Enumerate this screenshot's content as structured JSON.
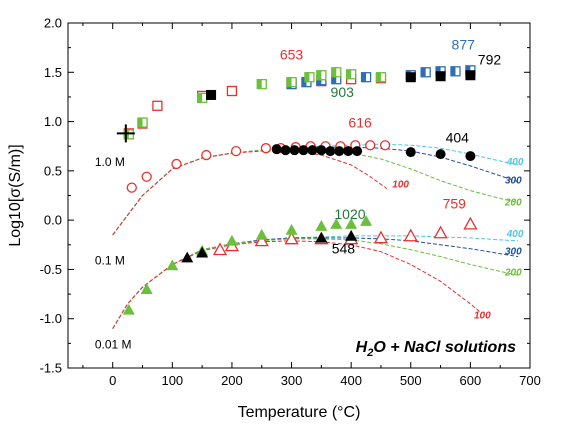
{
  "chart_data": {
    "type": "scatter",
    "title": "",
    "xlabel": "Temperature (°C)",
    "ylabel": "Log10[σ(S/m)]",
    "xlim": [
      -75,
      700
    ],
    "ylim": [
      -1.5,
      2.0
    ],
    "xticks": [
      "0",
      "100",
      "200",
      "300",
      "400",
      "500",
      "600",
      "700"
    ],
    "xtick_values": [
      0,
      100,
      200,
      300,
      400,
      500,
      600,
      700
    ],
    "yticks": [
      "-1.5",
      "-1.0",
      "-0.5",
      "0.0",
      "0.5",
      "1.0",
      "1.5",
      "2.0"
    ],
    "ytick_values": [
      -1.5,
      -1.0,
      -0.5,
      0.0,
      0.5,
      1.0,
      1.5,
      2.0
    ],
    "legend": "none",
    "grid": false,
    "inset_title_parts": [
      "H",
      "2",
      "O + NaCl solutions"
    ],
    "concentration_labels": [
      {
        "text": "1.0 M",
        "x": -30,
        "y": 0.55
      },
      {
        "text": "0.1 M",
        "x": -30,
        "y": -0.45
      },
      {
        "text": "0.01 M",
        "x": -30,
        "y": -1.3
      }
    ],
    "annotations": [
      {
        "text": "653",
        "x": 300,
        "y": 1.63,
        "color": "#e8312f"
      },
      {
        "text": "903",
        "x": 385,
        "y": 1.25,
        "color": "#1f7a3a"
      },
      {
        "text": "877",
        "x": 588,
        "y": 1.73,
        "color": "#2f6db5"
      },
      {
        "text": "792",
        "x": 632,
        "y": 1.58,
        "color": "#000000"
      },
      {
        "text": "616",
        "x": 415,
        "y": 0.94,
        "color": "#e8312f"
      },
      {
        "text": "404",
        "x": 578,
        "y": 0.79,
        "color": "#000000"
      },
      {
        "text": "1020",
        "x": 398,
        "y": 0.01,
        "color": "#1f7a3a"
      },
      {
        "text": "759",
        "x": 573,
        "y": 0.12,
        "color": "#e8312f"
      },
      {
        "text": "548",
        "x": 387,
        "y": -0.34,
        "color": "#000000"
      }
    ],
    "curve_labels": [
      {
        "text": "400",
        "x": 675,
        "y": 0.56,
        "color": "#4fc6e0"
      },
      {
        "text": "300",
        "x": 672,
        "y": 0.37,
        "color": "#1f4f9e"
      },
      {
        "text": "200",
        "x": 672,
        "y": 0.15,
        "color": "#6cbf3a"
      },
      {
        "text": "100",
        "x": 483,
        "y": 0.33,
        "color": "#e8312f"
      },
      {
        "text": "400",
        "x": 675,
        "y": -0.17,
        "color": "#4fc6e0"
      },
      {
        "text": "300",
        "x": 672,
        "y": -0.35,
        "color": "#1f4f9e"
      },
      {
        "text": "200",
        "x": 672,
        "y": -0.56,
        "color": "#6cbf3a"
      },
      {
        "text": "100",
        "x": 620,
        "y": -1.0,
        "color": "#e8312f"
      }
    ],
    "curves": [
      {
        "group": "1.0 M",
        "color": "#4fc6e0",
        "points": [
          [
            0,
            -0.15
          ],
          [
            25,
            0.05
          ],
          [
            50,
            0.25
          ],
          [
            100,
            0.52
          ],
          [
            150,
            0.63
          ],
          [
            200,
            0.68
          ],
          [
            250,
            0.71
          ],
          [
            300,
            0.73
          ],
          [
            350,
            0.75
          ],
          [
            400,
            0.76
          ],
          [
            450,
            0.77
          ],
          [
            500,
            0.76
          ],
          [
            550,
            0.73
          ],
          [
            600,
            0.67
          ],
          [
            650,
            0.6
          ],
          [
            680,
            0.56
          ]
        ]
      },
      {
        "group": "1.0 M",
        "color": "#1f4f9e",
        "points": [
          [
            0,
            -0.15
          ],
          [
            25,
            0.05
          ],
          [
            50,
            0.25
          ],
          [
            100,
            0.52
          ],
          [
            150,
            0.63
          ],
          [
            200,
            0.68
          ],
          [
            250,
            0.71
          ],
          [
            300,
            0.73
          ],
          [
            350,
            0.74
          ],
          [
            400,
            0.74
          ],
          [
            450,
            0.73
          ],
          [
            500,
            0.7
          ],
          [
            550,
            0.64
          ],
          [
            600,
            0.55
          ],
          [
            650,
            0.45
          ],
          [
            680,
            0.39
          ]
        ]
      },
      {
        "group": "1.0 M",
        "color": "#6cbf3a",
        "points": [
          [
            0,
            -0.15
          ],
          [
            25,
            0.05
          ],
          [
            50,
            0.25
          ],
          [
            100,
            0.52
          ],
          [
            150,
            0.63
          ],
          [
            200,
            0.68
          ],
          [
            250,
            0.71
          ],
          [
            300,
            0.72
          ],
          [
            350,
            0.71
          ],
          [
            400,
            0.68
          ],
          [
            450,
            0.62
          ],
          [
            500,
            0.52
          ],
          [
            550,
            0.4
          ],
          [
            600,
            0.3
          ],
          [
            650,
            0.22
          ],
          [
            680,
            0.18
          ]
        ]
      },
      {
        "group": "1.0 M",
        "color": "#e8312f",
        "points": [
          [
            0,
            -0.15
          ],
          [
            25,
            0.05
          ],
          [
            50,
            0.25
          ],
          [
            100,
            0.52
          ],
          [
            150,
            0.63
          ],
          [
            200,
            0.68
          ],
          [
            250,
            0.7
          ],
          [
            300,
            0.7
          ],
          [
            350,
            0.66
          ],
          [
            400,
            0.56
          ],
          [
            430,
            0.45
          ],
          [
            460,
            0.32
          ]
        ]
      },
      {
        "group": "0.1 M",
        "color": "#4fc6e0",
        "points": [
          [
            0,
            -1.1
          ],
          [
            25,
            -0.85
          ],
          [
            50,
            -0.68
          ],
          [
            100,
            -0.45
          ],
          [
            150,
            -0.3
          ],
          [
            200,
            -0.24
          ],
          [
            250,
            -0.2
          ],
          [
            300,
            -0.18
          ],
          [
            350,
            -0.17
          ],
          [
            400,
            -0.16
          ],
          [
            450,
            -0.16
          ],
          [
            500,
            -0.16
          ],
          [
            550,
            -0.17
          ],
          [
            600,
            -0.18
          ],
          [
            650,
            -0.2
          ],
          [
            680,
            -0.21
          ]
        ]
      },
      {
        "group": "0.1 M",
        "color": "#1f4f9e",
        "points": [
          [
            0,
            -1.1
          ],
          [
            25,
            -0.85
          ],
          [
            50,
            -0.68
          ],
          [
            100,
            -0.45
          ],
          [
            150,
            -0.3
          ],
          [
            200,
            -0.24
          ],
          [
            250,
            -0.2
          ],
          [
            300,
            -0.18
          ],
          [
            350,
            -0.18
          ],
          [
            400,
            -0.18
          ],
          [
            450,
            -0.19
          ],
          [
            500,
            -0.21
          ],
          [
            550,
            -0.25
          ],
          [
            600,
            -0.29
          ],
          [
            650,
            -0.34
          ],
          [
            680,
            -0.37
          ]
        ]
      },
      {
        "group": "0.1 M",
        "color": "#6cbf3a",
        "points": [
          [
            0,
            -1.1
          ],
          [
            25,
            -0.85
          ],
          [
            50,
            -0.68
          ],
          [
            100,
            -0.45
          ],
          [
            150,
            -0.3
          ],
          [
            200,
            -0.24
          ],
          [
            250,
            -0.21
          ],
          [
            300,
            -0.19
          ],
          [
            350,
            -0.19
          ],
          [
            400,
            -0.2
          ],
          [
            450,
            -0.24
          ],
          [
            500,
            -0.3
          ],
          [
            550,
            -0.37
          ],
          [
            600,
            -0.45
          ],
          [
            650,
            -0.52
          ],
          [
            680,
            -0.56
          ]
        ]
      },
      {
        "group": "0.1 M",
        "color": "#e8312f",
        "points": [
          [
            0,
            -1.1
          ],
          [
            25,
            -0.85
          ],
          [
            50,
            -0.68
          ],
          [
            100,
            -0.45
          ],
          [
            150,
            -0.31
          ],
          [
            200,
            -0.25
          ],
          [
            250,
            -0.22
          ],
          [
            300,
            -0.21
          ],
          [
            350,
            -0.22
          ],
          [
            400,
            -0.25
          ],
          [
            450,
            -0.32
          ],
          [
            500,
            -0.45
          ],
          [
            550,
            -0.62
          ],
          [
            600,
            -0.85
          ],
          [
            620,
            -0.95
          ]
        ]
      }
    ],
    "series": [
      {
        "name": "",
        "marker": "open-square",
        "color": "#e8312f",
        "points": [
          [
            27,
            0.88
          ],
          [
            50,
            0.98
          ],
          [
            75,
            1.16
          ],
          [
            150,
            1.26
          ],
          [
            200,
            1.31
          ],
          [
            300,
            1.39
          ],
          [
            350,
            1.41
          ],
          [
            400,
            1.43
          ],
          [
            450,
            1.44
          ]
        ]
      },
      {
        "name": "",
        "marker": "half-square",
        "color": "#2f6db5",
        "points": [
          [
            300,
            1.38
          ],
          [
            325,
            1.4
          ],
          [
            350,
            1.42
          ],
          [
            375,
            1.43
          ],
          [
            425,
            1.45
          ],
          [
            500,
            1.47
          ],
          [
            525,
            1.5
          ],
          [
            550,
            1.51
          ],
          [
            575,
            1.51
          ],
          [
            600,
            1.52
          ]
        ]
      },
      {
        "name": "",
        "marker": "half-square",
        "color": "#6cbf3a",
        "points": [
          [
            27,
            0.87
          ],
          [
            50,
            0.99
          ],
          [
            150,
            1.24
          ],
          [
            250,
            1.38
          ],
          [
            300,
            1.4
          ],
          [
            330,
            1.45
          ],
          [
            350,
            1.47
          ],
          [
            375,
            1.5
          ],
          [
            400,
            1.48
          ],
          [
            450,
            1.45
          ]
        ]
      },
      {
        "name": "",
        "marker": "filled-square",
        "color": "#000000",
        "points": [
          [
            165,
            1.27
          ],
          [
            500,
            1.45
          ],
          [
            550,
            1.46
          ],
          [
            600,
            1.47
          ]
        ]
      },
      {
        "name": "",
        "marker": "open-circle",
        "color": "#e8312f",
        "points": [
          [
            32,
            0.33
          ],
          [
            57,
            0.44
          ],
          [
            107,
            0.57
          ],
          [
            157,
            0.66
          ],
          [
            207,
            0.7
          ],
          [
            257,
            0.73
          ],
          [
            282,
            0.73
          ],
          [
            307,
            0.74
          ],
          [
            332,
            0.75
          ],
          [
            357,
            0.75
          ],
          [
            382,
            0.75
          ],
          [
            407,
            0.76
          ],
          [
            432,
            0.76
          ],
          [
            457,
            0.76
          ]
        ]
      },
      {
        "name": "",
        "marker": "filled-circle",
        "color": "#000000",
        "points": [
          [
            275,
            0.72
          ],
          [
            290,
            0.71
          ],
          [
            305,
            0.71
          ],
          [
            320,
            0.71
          ],
          [
            335,
            0.71
          ],
          [
            350,
            0.71
          ],
          [
            365,
            0.7
          ],
          [
            380,
            0.7
          ],
          [
            395,
            0.7
          ],
          [
            410,
            0.7
          ],
          [
            500,
            0.69
          ],
          [
            550,
            0.67
          ],
          [
            600,
            0.65
          ]
        ]
      },
      {
        "name": "",
        "marker": "open-triangle",
        "color": "#e8312f",
        "points": [
          [
            180,
            -0.3
          ],
          [
            200,
            -0.26
          ],
          [
            250,
            -0.21
          ],
          [
            300,
            -0.19
          ],
          [
            350,
            -0.19
          ],
          [
            400,
            -0.19
          ],
          [
            450,
            -0.18
          ],
          [
            500,
            -0.16
          ],
          [
            550,
            -0.13
          ],
          [
            600,
            -0.04
          ]
        ]
      },
      {
        "name": "",
        "marker": "filled-triangle",
        "color": "#6cbf3a",
        "points": [
          [
            27,
            -0.91
          ],
          [
            57,
            -0.7
          ],
          [
            100,
            -0.46
          ],
          [
            150,
            -0.31
          ],
          [
            200,
            -0.21
          ],
          [
            250,
            -0.15
          ],
          [
            300,
            -0.1
          ],
          [
            350,
            -0.06
          ],
          [
            375,
            -0.04
          ],
          [
            400,
            -0.04
          ],
          [
            425,
            -0.01
          ]
        ]
      },
      {
        "name": "",
        "marker": "filled-triangle",
        "color": "#000000",
        "points": [
          [
            125,
            -0.38
          ],
          [
            150,
            -0.33
          ],
          [
            350,
            -0.18
          ],
          [
            400,
            -0.16
          ]
        ]
      },
      {
        "name": "",
        "marker": "cross",
        "color": "#000000",
        "points": [
          [
            22,
            0.88
          ]
        ]
      }
    ]
  }
}
